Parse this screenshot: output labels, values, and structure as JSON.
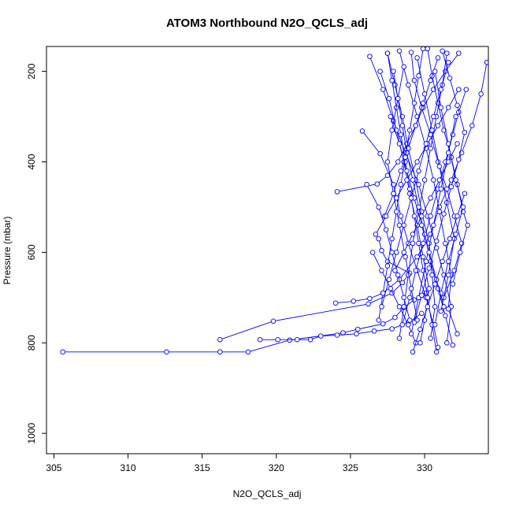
{
  "chart_data": {
    "type": "line",
    "title": "ATOM3 Northbound N2O_QCLS_adj",
    "xlabel": "N2O_QCLS_adj",
    "ylabel": "Pressure (mbar)",
    "xlim": [
      304.5,
      334.3
    ],
    "ylim": [
      1045,
      145
    ],
    "y_reversed": true,
    "x_ticks": [
      305,
      310,
      315,
      320,
      325,
      330
    ],
    "y_ticks": [
      200,
      400,
      600,
      800,
      1000
    ],
    "x_tick_labels": [
      "305",
      "310",
      "315",
      "320",
      "325",
      "330"
    ],
    "y_tick_labels": [
      "200",
      "400",
      "600",
      "800",
      "1000"
    ],
    "color": "#0000ff",
    "marker": "open-circle",
    "series": [
      {
        "points": [
          [
            305.6,
            820
          ],
          [
            312.6,
            820
          ],
          [
            316.2,
            820
          ],
          [
            318.1,
            820
          ],
          [
            320.9,
            794
          ],
          [
            324.5,
            778
          ],
          [
            325.5,
            770
          ],
          [
            327.2,
            758
          ],
          [
            328.0,
            744
          ],
          [
            328.6,
            722
          ],
          [
            329.3,
            705
          ],
          [
            330.1,
            690
          ]
        ]
      },
      {
        "points": [
          [
            316.2,
            793
          ],
          [
            319.8,
            752
          ],
          [
            326.2,
            714
          ],
          [
            327.8,
            690
          ],
          [
            328.5,
            667
          ],
          [
            329.0,
            646
          ],
          [
            327.5,
            620
          ],
          [
            327.1,
            596
          ],
          [
            326.9,
            570
          ]
        ]
      },
      {
        "points": [
          [
            318.9,
            793
          ],
          [
            320.1,
            793
          ],
          [
            321.4,
            793
          ],
          [
            322.3,
            793
          ],
          [
            323.0,
            785
          ],
          [
            324.1,
            783
          ],
          [
            325.4,
            780
          ],
          [
            326.6,
            774
          ],
          [
            327.8,
            769
          ],
          [
            328.9,
            755
          ],
          [
            329.8,
            735
          ]
        ]
      },
      {
        "points": [
          [
            324.0,
            712
          ],
          [
            325.2,
            708
          ],
          [
            326.3,
            702
          ],
          [
            327.2,
            690
          ],
          [
            328.3,
            660
          ],
          [
            329.5,
            610
          ],
          [
            330.4,
            560
          ],
          [
            331.0,
            500
          ],
          [
            331.8,
            440
          ],
          [
            332.5,
            380
          ],
          [
            333.2,
            320
          ],
          [
            333.8,
            250
          ],
          [
            334.2,
            180
          ]
        ]
      },
      {
        "points": [
          [
            324.1,
            466
          ],
          [
            326.8,
            449
          ],
          [
            327.5,
            430
          ],
          [
            328.2,
            400
          ],
          [
            328.8,
            360
          ],
          [
            329.4,
            320
          ],
          [
            329.9,
            280
          ],
          [
            330.6,
            240
          ],
          [
            331.4,
            200
          ],
          [
            332.3,
            160
          ]
        ]
      },
      {
        "points": [
          [
            325.8,
            332
          ],
          [
            327.0,
            382
          ],
          [
            327.9,
            450
          ],
          [
            328.4,
            520
          ],
          [
            328.9,
            580
          ],
          [
            329.5,
            640
          ],
          [
            330.1,
            700
          ],
          [
            330.6,
            760
          ],
          [
            330.9,
            810
          ]
        ]
      },
      {
        "points": [
          [
            326.3,
            167
          ],
          [
            327.2,
            240
          ],
          [
            327.9,
            310
          ],
          [
            328.7,
            380
          ],
          [
            329.6,
            450
          ],
          [
            330.2,
            520
          ],
          [
            330.8,
            590
          ],
          [
            331.3,
            650
          ],
          [
            331.8,
            720
          ],
          [
            331.5,
            800
          ]
        ]
      },
      {
        "points": [
          [
            327.5,
            160
          ],
          [
            328.0,
            230
          ],
          [
            328.5,
            300
          ],
          [
            328.9,
            370
          ],
          [
            329.4,
            440
          ],
          [
            329.8,
            510
          ],
          [
            330.3,
            580
          ],
          [
            330.5,
            650
          ],
          [
            330.7,
            720
          ],
          [
            330.4,
            790
          ]
        ]
      },
      {
        "points": [
          [
            328.3,
            155
          ],
          [
            328.9,
            230
          ],
          [
            329.5,
            300
          ],
          [
            330.1,
            370
          ],
          [
            330.6,
            440
          ],
          [
            331.0,
            510
          ],
          [
            331.4,
            580
          ],
          [
            331.8,
            650
          ],
          [
            331.6,
            725
          ],
          [
            332.2,
            780
          ]
        ]
      },
      {
        "points": [
          [
            329.1,
            158
          ],
          [
            329.3,
            220
          ],
          [
            329.8,
            280
          ],
          [
            330.4,
            340
          ],
          [
            330.9,
            400
          ],
          [
            331.5,
            460
          ],
          [
            332.0,
            520
          ],
          [
            332.5,
            580
          ],
          [
            332.0,
            640
          ],
          [
            331.3,
            700
          ]
        ]
      },
      {
        "points": [
          [
            330.2,
            150
          ],
          [
            330.5,
            210
          ],
          [
            330.9,
            270
          ],
          [
            331.3,
            330
          ],
          [
            331.8,
            390
          ],
          [
            332.2,
            450
          ],
          [
            332.6,
            510
          ],
          [
            332.9,
            540
          ],
          [
            332.4,
            600
          ],
          [
            331.9,
            670
          ]
        ]
      },
      {
        "points": [
          [
            331.5,
            160
          ],
          [
            331.2,
            230
          ],
          [
            330.8,
            300
          ],
          [
            330.4,
            370
          ],
          [
            330.0,
            440
          ],
          [
            329.6,
            510
          ],
          [
            329.2,
            580
          ],
          [
            328.9,
            650
          ],
          [
            328.6,
            720
          ],
          [
            328.3,
            790
          ]
        ]
      },
      {
        "points": [
          [
            332.8,
            240
          ],
          [
            332.3,
            290
          ],
          [
            331.9,
            340
          ],
          [
            331.4,
            400
          ],
          [
            330.9,
            460
          ],
          [
            330.4,
            520
          ],
          [
            329.9,
            580
          ],
          [
            329.4,
            640
          ],
          [
            329.0,
            700
          ],
          [
            328.5,
            760
          ]
        ]
      },
      {
        "points": [
          [
            327.0,
            200
          ],
          [
            327.6,
            260
          ],
          [
            328.1,
            330
          ],
          [
            328.6,
            400
          ],
          [
            329.0,
            470
          ],
          [
            329.5,
            540
          ],
          [
            329.9,
            610
          ],
          [
            330.3,
            680
          ],
          [
            330.0,
            750
          ],
          [
            329.7,
            800
          ]
        ]
      },
      {
        "points": [
          [
            326.1,
            450
          ],
          [
            326.9,
            500
          ],
          [
            327.4,
            550
          ],
          [
            327.8,
            600
          ],
          [
            328.2,
            650
          ],
          [
            328.6,
            700
          ],
          [
            329.0,
            750
          ]
        ]
      },
      {
        "points": [
          [
            327.3,
            520
          ],
          [
            327.9,
            470
          ],
          [
            328.4,
            420
          ],
          [
            328.9,
            370
          ],
          [
            329.4,
            320
          ],
          [
            329.9,
            270
          ],
          [
            330.4,
            220
          ],
          [
            330.9,
            170
          ]
        ]
      },
      {
        "points": [
          [
            330.8,
            820
          ],
          [
            330.5,
            760
          ],
          [
            330.2,
            700
          ],
          [
            329.9,
            640
          ],
          [
            329.6,
            580
          ],
          [
            329.3,
            520
          ],
          [
            329.0,
            460
          ],
          [
            328.7,
            400
          ],
          [
            328.4,
            340
          ],
          [
            328.1,
            280
          ],
          [
            327.8,
            220
          ],
          [
            327.5,
            160
          ]
        ]
      },
      {
        "points": [
          [
            331.9,
            805
          ],
          [
            331.4,
            740
          ],
          [
            330.9,
            680
          ],
          [
            330.4,
            620
          ],
          [
            330.0,
            560
          ],
          [
            329.6,
            500
          ],
          [
            329.2,
            440
          ],
          [
            328.8,
            380
          ],
          [
            328.5,
            320
          ],
          [
            328.2,
            260
          ],
          [
            327.9,
            200
          ]
        ]
      },
      {
        "points": [
          [
            326.5,
            600
          ],
          [
            327.1,
            640
          ],
          [
            327.7,
            680
          ],
          [
            328.3,
            720
          ],
          [
            328.9,
            760
          ],
          [
            329.4,
            800
          ]
        ]
      },
      {
        "points": [
          [
            329.5,
            170
          ],
          [
            330.0,
            250
          ],
          [
            330.5,
            330
          ],
          [
            331.0,
            410
          ],
          [
            331.5,
            490
          ],
          [
            332.0,
            570
          ],
          [
            331.6,
            650
          ],
          [
            331.1,
            730
          ]
        ]
      },
      {
        "points": [
          [
            328.6,
            190
          ],
          [
            328.2,
            260
          ],
          [
            327.8,
            330
          ],
          [
            327.5,
            400
          ],
          [
            327.9,
            470
          ],
          [
            328.3,
            540
          ],
          [
            328.7,
            610
          ],
          [
            329.1,
            680
          ],
          [
            329.5,
            750
          ]
        ]
      },
      {
        "points": [
          [
            330.7,
            200
          ],
          [
            331.1,
            280
          ],
          [
            331.6,
            360
          ],
          [
            332.1,
            440
          ],
          [
            332.6,
            500
          ],
          [
            332.1,
            560
          ],
          [
            331.6,
            620
          ],
          [
            331.1,
            690
          ],
          [
            330.7,
            760
          ]
        ]
      },
      {
        "points": [
          [
            332.1,
            300
          ],
          [
            331.6,
            380
          ],
          [
            331.1,
            460
          ],
          [
            330.6,
            540
          ],
          [
            330.1,
            620
          ],
          [
            329.6,
            700
          ],
          [
            329.1,
            780
          ]
        ]
      },
      {
        "points": [
          [
            327.7,
            300
          ],
          [
            328.3,
            360
          ],
          [
            328.8,
            420
          ],
          [
            329.3,
            480
          ],
          [
            329.8,
            540
          ],
          [
            330.3,
            600
          ],
          [
            330.8,
            660
          ],
          [
            331.3,
            720
          ]
        ]
      },
      {
        "points": [
          [
            329.9,
            150
          ],
          [
            329.6,
            210
          ],
          [
            329.3,
            270
          ],
          [
            329.0,
            330
          ],
          [
            328.7,
            390
          ],
          [
            328.4,
            450
          ],
          [
            328.1,
            510
          ],
          [
            327.8,
            570
          ],
          [
            327.5,
            630
          ],
          [
            327.2,
            690
          ],
          [
            326.9,
            750
          ]
        ]
      },
      {
        "points": [
          [
            331.2,
            155
          ],
          [
            331.7,
            215
          ],
          [
            332.2,
            275
          ],
          [
            332.7,
            335
          ],
          [
            332.3,
            395
          ],
          [
            331.8,
            455
          ],
          [
            331.3,
            515
          ],
          [
            330.8,
            575
          ],
          [
            330.3,
            635
          ],
          [
            329.8,
            695
          ],
          [
            329.3,
            755
          ]
        ]
      },
      {
        "points": [
          [
            328.0,
            640
          ],
          [
            328.6,
            600
          ],
          [
            329.2,
            560
          ],
          [
            329.8,
            520
          ],
          [
            330.4,
            480
          ],
          [
            331.0,
            440
          ],
          [
            331.6,
            400
          ],
          [
            332.2,
            360
          ]
        ]
      },
      {
        "points": [
          [
            326.7,
            560
          ],
          [
            327.4,
            520
          ],
          [
            328.1,
            480
          ],
          [
            328.8,
            440
          ],
          [
            329.5,
            400
          ],
          [
            330.2,
            360
          ],
          [
            330.9,
            320
          ],
          [
            331.6,
            280
          ],
          [
            332.3,
            240
          ]
        ]
      },
      {
        "points": [
          [
            329.2,
            820
          ],
          [
            329.7,
            770
          ],
          [
            330.2,
            720
          ],
          [
            330.7,
            670
          ],
          [
            331.2,
            620
          ],
          [
            331.7,
            570
          ],
          [
            332.2,
            520
          ],
          [
            332.7,
            470
          ]
        ]
      },
      {
        "points": [
          [
            327.1,
            720
          ],
          [
            327.6,
            660
          ],
          [
            328.1,
            600
          ],
          [
            328.6,
            540
          ],
          [
            329.1,
            480
          ],
          [
            329.6,
            420
          ],
          [
            330.1,
            360
          ],
          [
            330.6,
            300
          ],
          [
            331.1,
            240
          ],
          [
            331.6,
            180
          ]
        ]
      }
    ]
  }
}
